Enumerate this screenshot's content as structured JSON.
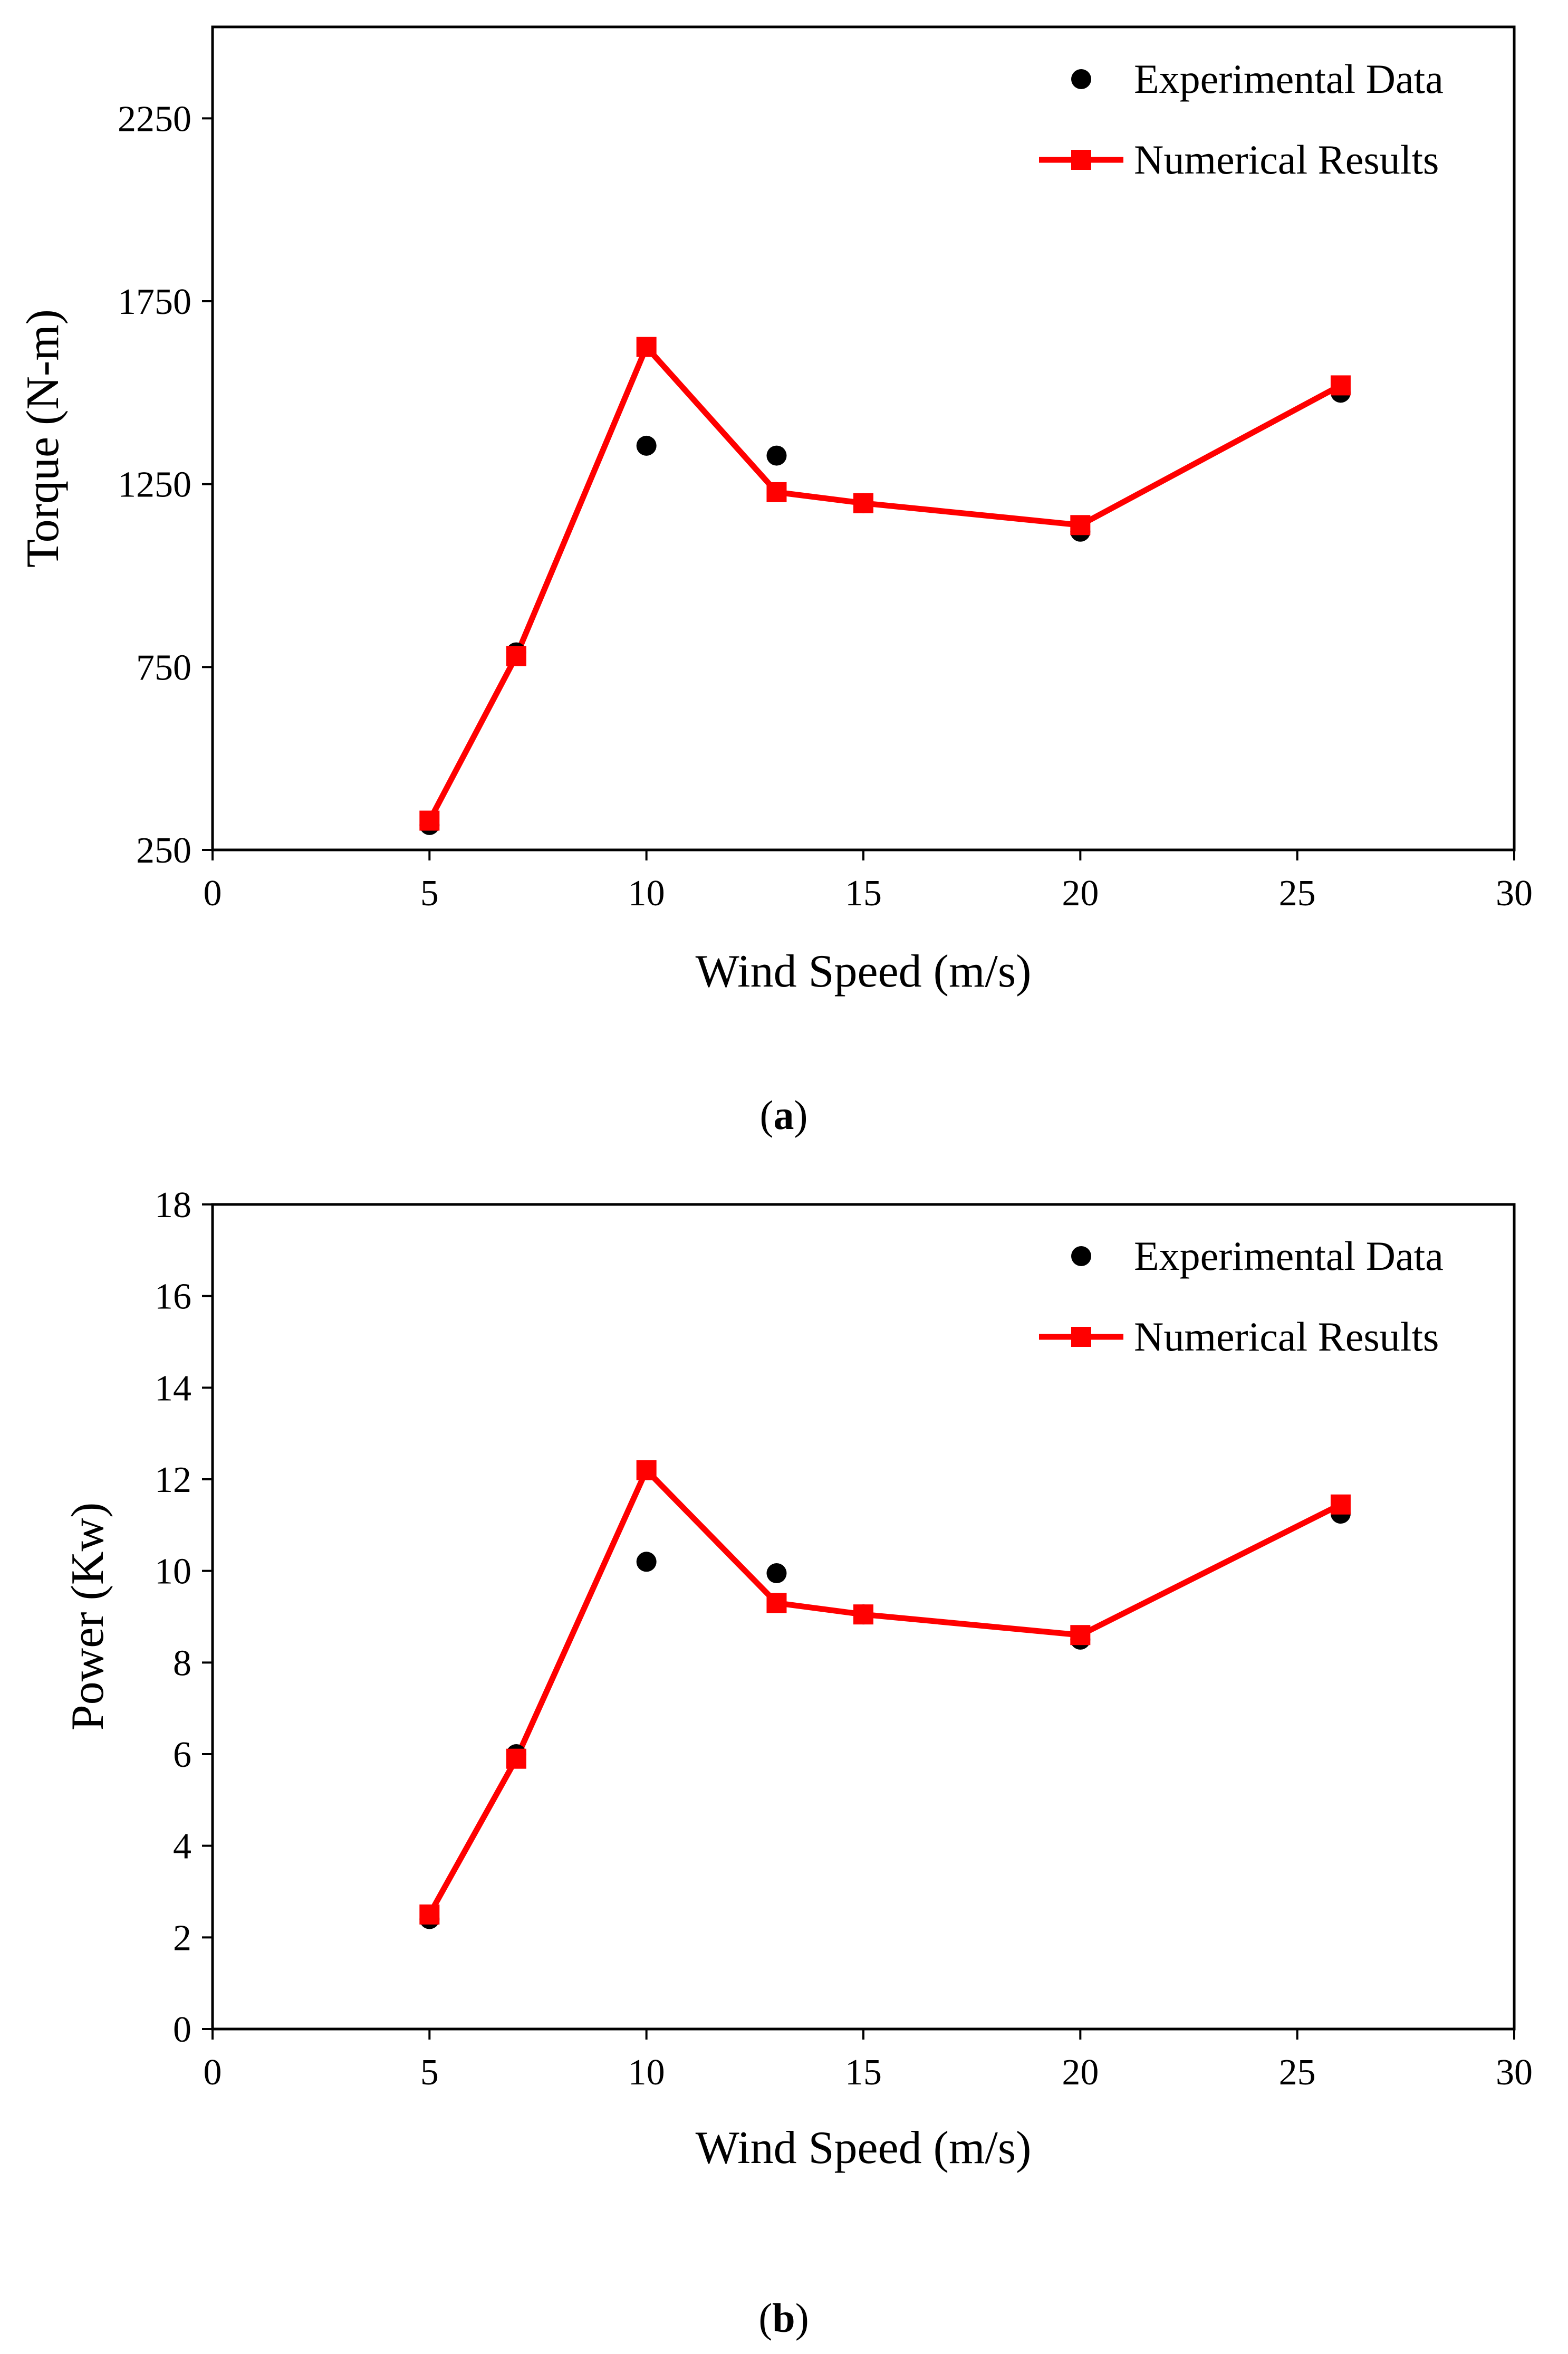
{
  "chart_data": [
    {
      "type": "line",
      "panel_label": "a",
      "xlabel": "Wind Speed (m/s)",
      "ylabel": "Torque (N-m)",
      "xlim": [
        0,
        30
      ],
      "ylim": [
        250,
        2500
      ],
      "xticks": [
        0,
        5,
        10,
        15,
        20,
        25,
        30
      ],
      "yticks": [
        250,
        750,
        1250,
        1750,
        2250
      ],
      "legend_position": "top-right",
      "grid": false,
      "series": [
        {
          "name": "Experimental Data",
          "style": "markers",
          "marker": "circle",
          "color": "#000000",
          "points": [
            [
              5,
              318
            ],
            [
              7,
              790
            ],
            [
              10,
              1355
            ],
            [
              13,
              1328
            ],
            [
              15,
              1198
            ],
            [
              20,
              1120
            ],
            [
              26,
              1500
            ]
          ]
        },
        {
          "name": "Numerical Results",
          "style": "line-markers",
          "marker": "square",
          "color": "#ff0000",
          "points": [
            [
              5,
              330
            ],
            [
              7,
              780
            ],
            [
              10,
              1625
            ],
            [
              13,
              1228
            ],
            [
              15,
              1198
            ],
            [
              20,
              1138
            ],
            [
              26,
              1520
            ]
          ]
        }
      ]
    },
    {
      "type": "line",
      "panel_label": "b",
      "xlabel": "Wind Speed (m/s)",
      "ylabel": "Power (Kw)",
      "xlim": [
        0,
        30
      ],
      "ylim": [
        0,
        18
      ],
      "xticks": [
        0,
        5,
        10,
        15,
        20,
        25,
        30
      ],
      "yticks": [
        0,
        2,
        4,
        6,
        8,
        10,
        12,
        14,
        16,
        18
      ],
      "legend_position": "top-right",
      "grid": false,
      "series": [
        {
          "name": "Experimental Data",
          "style": "markers",
          "marker": "circle",
          "color": "#000000",
          "points": [
            [
              5,
              2.4
            ],
            [
              7,
              6.0
            ],
            [
              10,
              10.2
            ],
            [
              13,
              9.95
            ],
            [
              15,
              9.05
            ],
            [
              20,
              8.5
            ],
            [
              26,
              11.25
            ]
          ]
        },
        {
          "name": "Numerical Results",
          "style": "line-markers",
          "marker": "square",
          "color": "#ff0000",
          "points": [
            [
              5,
              2.5
            ],
            [
              7,
              5.9
            ],
            [
              10,
              12.2
            ],
            [
              13,
              9.3
            ],
            [
              15,
              9.05
            ],
            [
              20,
              8.6
            ],
            [
              26,
              11.45
            ]
          ]
        }
      ]
    }
  ]
}
